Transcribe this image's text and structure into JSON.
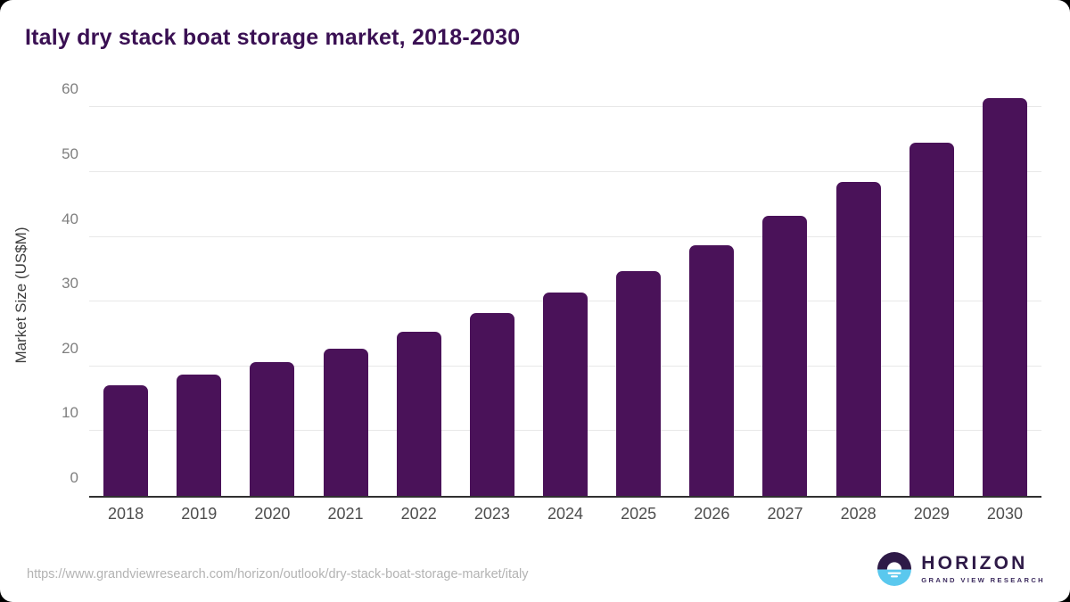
{
  "title": "Italy dry stack boat storage market, 2018-2030",
  "chart_data": {
    "type": "bar",
    "title": "Italy dry stack boat storage market, 2018-2030",
    "categories": [
      "2018",
      "2019",
      "2020",
      "2021",
      "2022",
      "2023",
      "2024",
      "2025",
      "2026",
      "2027",
      "2028",
      "2029",
      "2030"
    ],
    "values": [
      17.1,
      18.8,
      20.7,
      22.8,
      25.3,
      28.3,
      31.4,
      34.7,
      38.7,
      43.2,
      48.5,
      54.5,
      61.5
    ],
    "xlabel": "",
    "ylabel": "Market Size (US$M)",
    "ylim": [
      0,
      63
    ],
    "yticks": [
      0,
      10,
      20,
      30,
      40,
      50,
      60
    ],
    "grid": true,
    "legend": "none",
    "bar_color": "#4a1259"
  },
  "footer": {
    "source_url": "https://www.grandviewresearch.com/horizon/outlook/dry-stack-boat-storage-market/italy",
    "logo": {
      "name": "HORIZON",
      "subtitle": "GRAND VIEW RESEARCH",
      "icon": "horizon-sun-over-water-icon",
      "purple": "#2e1a47",
      "blue": "#5ac8ee"
    }
  },
  "colors": {
    "bar": "#4a1259",
    "title_text": "#3a1053",
    "axis_line": "#303030",
    "gridline": "#e8e8e8",
    "y_tick_text": "#7f7f7f",
    "x_tick_text": "#4d4d4d",
    "url_text": "#b3b3b3",
    "background": "#ffffff"
  }
}
